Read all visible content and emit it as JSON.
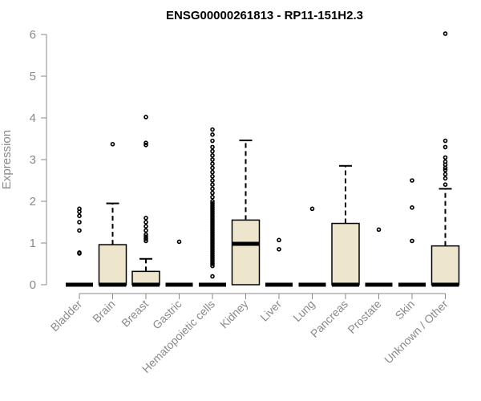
{
  "chart_data": {
    "type": "box",
    "title": "ENSG00000261813 - RP11-151H2.3",
    "xlabel": "",
    "ylabel": "Expression",
    "ylim": [
      0,
      6
    ],
    "yticks": [
      "0",
      "1",
      "2",
      "3",
      "4",
      "5",
      "6"
    ],
    "grid": false,
    "box_color": "#ede6cc",
    "outline_color": "#000000",
    "axis_color": "#8a8a8a",
    "categories": [
      "Bladder",
      "Brain",
      "Breast",
      "Gastric",
      "Hematopoietic cells",
      "Kidney",
      "Liver",
      "Lung",
      "Pancreas",
      "Prostate",
      "Skin",
      "Unknown / Other"
    ],
    "boxes": [
      {
        "q1": 0,
        "median": 0,
        "q3": 0,
        "whisker_low": 0,
        "whisker_high": 0,
        "outliers": [
          0.75,
          0.77,
          1.3,
          1.5,
          1.65,
          1.75,
          1.82
        ]
      },
      {
        "q1": 0,
        "median": 0,
        "q3": 0.96,
        "whisker_low": 0,
        "whisker_high": 1.95,
        "outliers": [
          3.37
        ]
      },
      {
        "q1": 0,
        "median": 0,
        "q3": 0.32,
        "whisker_low": 0,
        "whisker_high": 0.62,
        "outliers": [
          1.05,
          1.1,
          1.15,
          1.2,
          1.3,
          1.4,
          1.5,
          1.6,
          3.35,
          3.4,
          4.02
        ]
      },
      {
        "q1": 0,
        "median": 0,
        "q3": 0,
        "whisker_low": 0,
        "whisker_high": 0,
        "outliers": [
          1.03
        ]
      },
      {
        "q1": 0,
        "median": 0,
        "q3": 0,
        "whisker_low": 0,
        "whisker_high": 0,
        "outliers": [
          0.2,
          0.45,
          0.5,
          0.55,
          0.6,
          0.65,
          0.7,
          0.75,
          0.8,
          0.85,
          0.9,
          0.95,
          1.0,
          1.05,
          1.1,
          1.15,
          1.2,
          1.25,
          1.3,
          1.35,
          1.4,
          1.45,
          1.5,
          1.55,
          1.6,
          1.65,
          1.7,
          1.75,
          1.8,
          1.85,
          1.9,
          1.95,
          2.0,
          2.1,
          2.2,
          2.3,
          2.4,
          2.5,
          2.6,
          2.7,
          2.8,
          2.9,
          3.0,
          3.1,
          3.2,
          3.3,
          3.45,
          3.6,
          3.72
        ]
      },
      {
        "q1": 0,
        "median": 0.98,
        "q3": 1.55,
        "whisker_low": 0,
        "whisker_high": 3.46,
        "outliers": []
      },
      {
        "q1": 0,
        "median": 0,
        "q3": 0,
        "whisker_low": 0,
        "whisker_high": 0,
        "outliers": [
          0.85,
          1.07
        ]
      },
      {
        "q1": 0,
        "median": 0,
        "q3": 0,
        "whisker_low": 0,
        "whisker_high": 0,
        "outliers": [
          1.82
        ]
      },
      {
        "q1": 0,
        "median": 0,
        "q3": 1.47,
        "whisker_low": 0,
        "whisker_high": 2.85,
        "outliers": []
      },
      {
        "q1": 0,
        "median": 0,
        "q3": 0,
        "whisker_low": 0,
        "whisker_high": 0,
        "outliers": [
          1.32
        ]
      },
      {
        "q1": 0,
        "median": 0,
        "q3": 0,
        "whisker_low": 0,
        "whisker_high": 0,
        "outliers": [
          1.05,
          1.85,
          2.5
        ]
      },
      {
        "q1": 0,
        "median": 0,
        "q3": 0.93,
        "whisker_low": 0,
        "whisker_high": 2.3,
        "outliers": [
          2.4,
          2.55,
          2.65,
          2.75,
          2.8,
          2.88,
          2.95,
          3.05,
          3.3,
          3.45,
          6.02
        ]
      }
    ]
  }
}
